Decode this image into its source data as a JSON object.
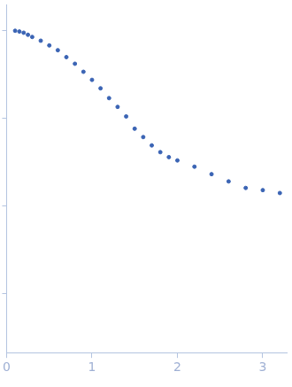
{
  "chart_data": {
    "type": "scatter",
    "x": [
      0.1,
      0.15,
      0.2,
      0.25,
      0.3,
      0.4,
      0.5,
      0.6,
      0.7,
      0.8,
      0.9,
      1.0,
      1.1,
      1.2,
      1.3,
      1.4,
      1.5,
      1.6,
      1.7,
      1.8,
      1.9,
      2.0,
      2.2,
      2.4,
      2.6,
      2.8,
      3.0,
      3.2
    ],
    "values": [
      1.0,
      0.98,
      0.95,
      0.9,
      0.85,
      0.77,
      0.68,
      0.6,
      0.5,
      0.42,
      0.34,
      0.275,
      0.22,
      0.17,
      0.135,
      0.105,
      0.076,
      0.061,
      0.049,
      0.041,
      0.036,
      0.033,
      0.028,
      0.023,
      0.019,
      0.016,
      0.0151,
      0.014
    ],
    "color": "#3b64b4",
    "marker": "circle",
    "log": "y",
    "xlim": [
      0,
      3.28
    ],
    "xticks": [
      0,
      1,
      2,
      3
    ],
    "ylim": [
      0.00021,
      2.0
    ],
    "yticks": [
      0.001,
      0.01,
      0.1,
      1
    ],
    "grid": false,
    "tick_labels": "x"
  }
}
